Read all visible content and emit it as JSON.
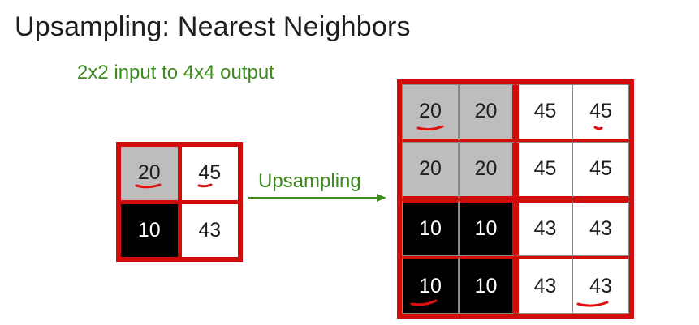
{
  "title": "Upsampling: Nearest Neighbors",
  "subtitle": "2x2 input to 4x4 output",
  "arrow_label": "Upsampling",
  "colors": {
    "frame_red": "#d20b0b",
    "green_text": "#3d8a1f",
    "gray_cell": "#bdbdbd",
    "black_cell": "#000000",
    "white_cell": "#ffffff"
  },
  "input_grid": {
    "rows": [
      [
        {
          "value": "20",
          "shade": "gray"
        },
        {
          "value": "45",
          "shade": "white"
        }
      ],
      [
        {
          "value": "10",
          "shade": "black"
        },
        {
          "value": "43",
          "shade": "white"
        }
      ]
    ]
  },
  "output_grid": {
    "rows": [
      [
        {
          "value": "20",
          "shade": "gray"
        },
        {
          "value": "20",
          "shade": "gray"
        },
        {
          "value": "45",
          "shade": "white"
        },
        {
          "value": "45",
          "shade": "white"
        }
      ],
      [
        {
          "value": "20",
          "shade": "gray"
        },
        {
          "value": "20",
          "shade": "gray"
        },
        {
          "value": "45",
          "shade": "white"
        },
        {
          "value": "45",
          "shade": "white"
        }
      ],
      [
        {
          "value": "10",
          "shade": "black"
        },
        {
          "value": "10",
          "shade": "black"
        },
        {
          "value": "43",
          "shade": "white"
        },
        {
          "value": "43",
          "shade": "white"
        }
      ],
      [
        {
          "value": "10",
          "shade": "black"
        },
        {
          "value": "10",
          "shade": "black"
        },
        {
          "value": "43",
          "shade": "white"
        },
        {
          "value": "43",
          "shade": "white"
        }
      ]
    ]
  },
  "icons": [
    "right-arrow-icon"
  ]
}
